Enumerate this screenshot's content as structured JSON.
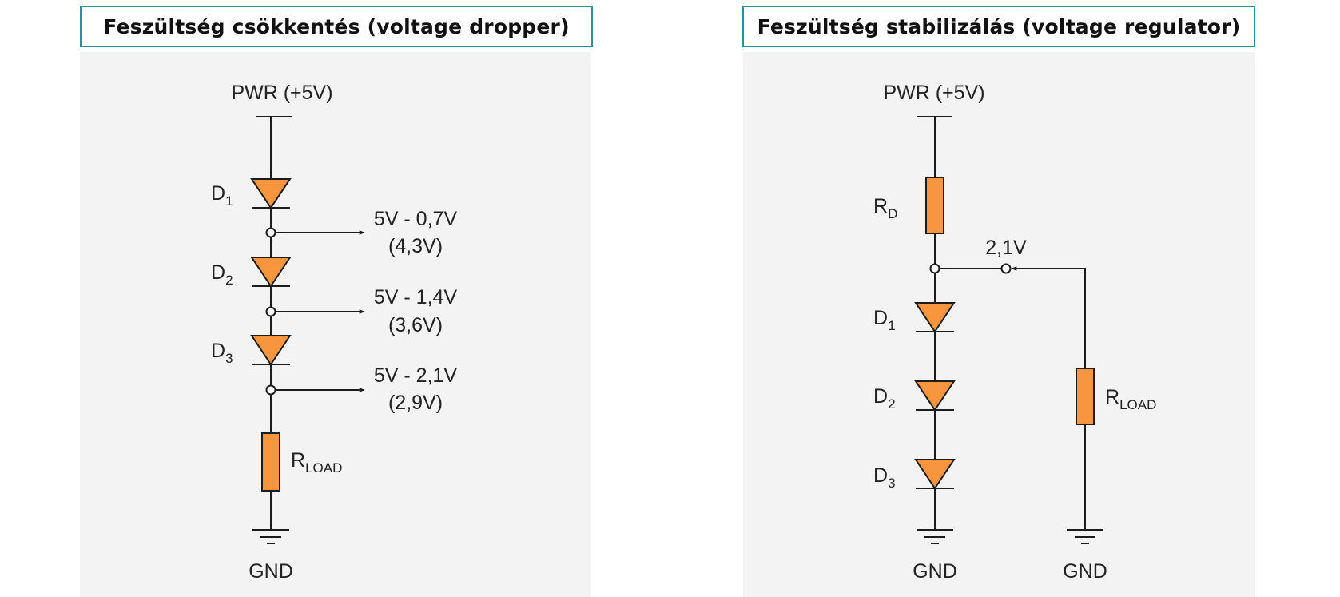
{
  "left": {
    "title": "Feszültség csökkentés (voltage dropper)",
    "pwr_label": "PWR (+5V)",
    "gnd_label": "GND",
    "diodes": [
      {
        "main": "D",
        "sub": "1"
      },
      {
        "main": "D",
        "sub": "2"
      },
      {
        "main": "D",
        "sub": "3"
      }
    ],
    "taps": [
      {
        "line1": "5V - 0,7V",
        "line2": "(4,3V)"
      },
      {
        "line1": "5V - 1,4V",
        "line2": "(3,6V)"
      },
      {
        "line1": "5V - 2,1V",
        "line2": "(2,9V)"
      }
    ],
    "load": {
      "main": "R",
      "sub": "LOAD"
    }
  },
  "right": {
    "title": "Feszültség stabilizálás (voltage regulator)",
    "pwr_label": "PWR (+5V)",
    "gnd_label_1": "GND",
    "gnd_label_2": "GND",
    "rd": {
      "main": "R",
      "sub": "D"
    },
    "output_label": "2,1V",
    "diodes": [
      {
        "main": "D",
        "sub": "1"
      },
      {
        "main": "D",
        "sub": "2"
      },
      {
        "main": "D",
        "sub": "3"
      }
    ],
    "load": {
      "main": "R",
      "sub": "LOAD"
    }
  },
  "colors": {
    "component_fill": "#f7963f",
    "component_stroke": "#1c1c1c",
    "title_border": "#2b9196",
    "panel_bg": "#f3f3f3"
  }
}
